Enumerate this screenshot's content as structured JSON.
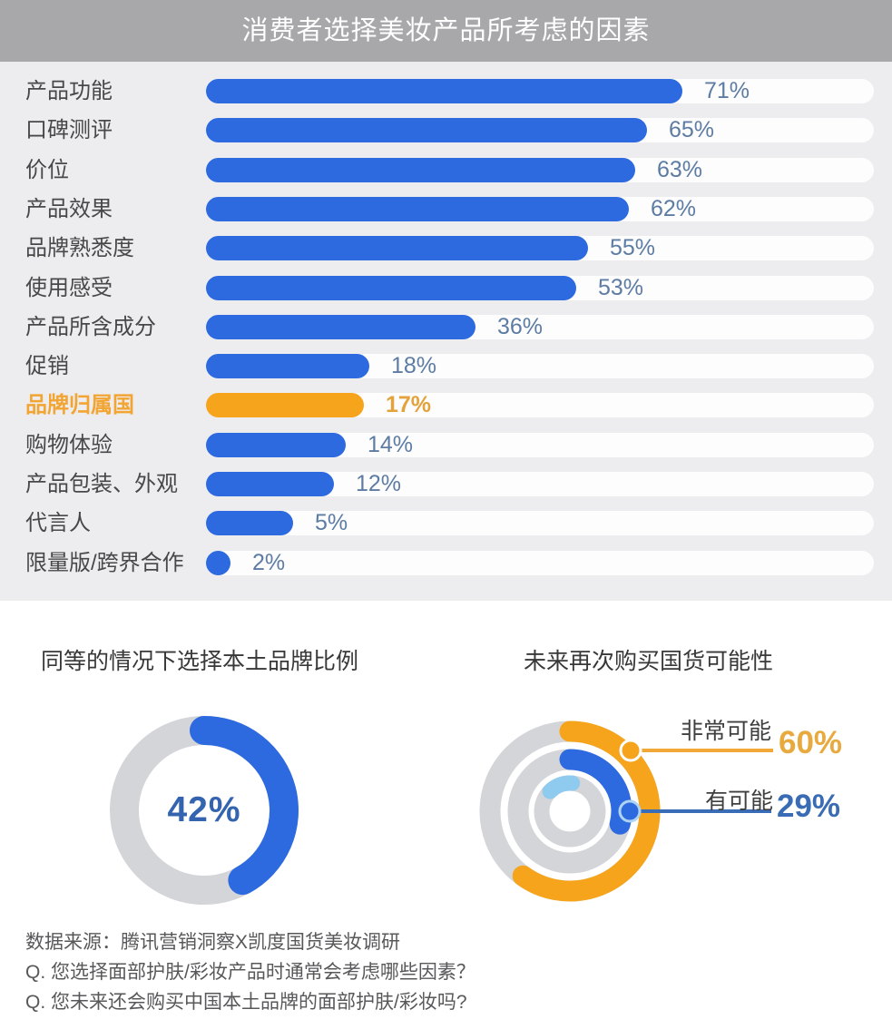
{
  "header": {
    "title": "消费者选择美妆产品所考虑的因素"
  },
  "chart_data": [
    {
      "type": "bar",
      "orientation": "horizontal",
      "title": "消费者选择美妆产品所考虑的因素",
      "categories": [
        "产品功能",
        "口碑测评",
        "价位",
        "产品效果",
        "品牌熟悉度",
        "使用感受",
        "产品所含成分",
        "促销",
        "品牌归属国",
        "购物体验",
        "产品包装、外观",
        "代言人",
        "限量版/跨界合作"
      ],
      "values": [
        71,
        65,
        63,
        62,
        55,
        53,
        36,
        18,
        17,
        14,
        12,
        5,
        2
      ],
      "value_suffix": "%",
      "xlim": [
        0,
        100
      ],
      "highlight_index": 8,
      "bar_color": "#2d6ae0",
      "highlight_color": "#f5a41c",
      "track_color": "#fdfdfe",
      "legend": "none",
      "grid": false
    },
    {
      "type": "donut",
      "title": "同等的情况下选择本土品牌比例",
      "value": 42,
      "center_label": "42%",
      "arc_color": "#2d6ae0",
      "track_color": "#d4d5d9",
      "start_position": "top",
      "direction": "clockwise"
    },
    {
      "type": "radial-bars",
      "title": "未来再次购买国货可能性",
      "track_color": "#d4d5d9",
      "start_position": "top",
      "direction": "clockwise",
      "series": [
        {
          "name": "非常可能",
          "value": 60,
          "label": "60%",
          "color": "#f5a41c",
          "ring": "outer"
        },
        {
          "name": "有可能",
          "value": 29,
          "label": "29%",
          "color": "#2d6ae0",
          "ring": "middle"
        },
        {
          "name": "",
          "value": null,
          "label": "",
          "color": "#8fcaef",
          "ring": "inner",
          "start_deg": -45,
          "end_deg": 5
        }
      ]
    }
  ],
  "footer": {
    "lines": [
      "数据来源：腾讯营销洞察X凯度国货美妆调研",
      "Q. 您选择面部护肤/彩妆产品时通常会考虑哪些因素？",
      "Q. 您未来还会购买中国本土品牌的面部护肤/彩妆吗?"
    ]
  }
}
